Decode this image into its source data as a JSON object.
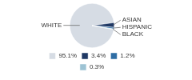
{
  "chart_data": {
    "type": "pie",
    "categories": [
      "WHITE",
      "ASIAN",
      "HISPANIC",
      "BLACK"
    ],
    "values": [
      95.1,
      3.4,
      1.2,
      0.3
    ],
    "value_labels": [
      "95.1%",
      "3.4%",
      "1.2%",
      "0.3%"
    ],
    "colors": [
      "#d6dce4",
      "#1f3864",
      "#2e6da4",
      "#9dc3d4"
    ],
    "legend": "bottom"
  }
}
